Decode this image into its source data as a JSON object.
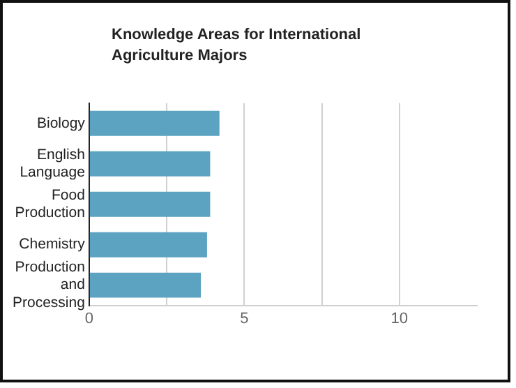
{
  "chart_data": {
    "type": "bar",
    "orientation": "horizontal",
    "title": "Knowledge Areas for International Agriculture Majors",
    "categories": [
      "Biology",
      "English Language",
      "Food Production",
      "Chemistry",
      "Production and Processing"
    ],
    "values": [
      4.2,
      3.9,
      3.9,
      3.8,
      3.6
    ],
    "color": "#5ba3c0",
    "xlim": [
      0,
      12.5
    ],
    "xticks": [
      0,
      {
        "value": 2.5,
        "label": null
      },
      5,
      {
        "value": 7.5,
        "label": null
      },
      10
    ],
    "grid": "x",
    "legend": false
  }
}
